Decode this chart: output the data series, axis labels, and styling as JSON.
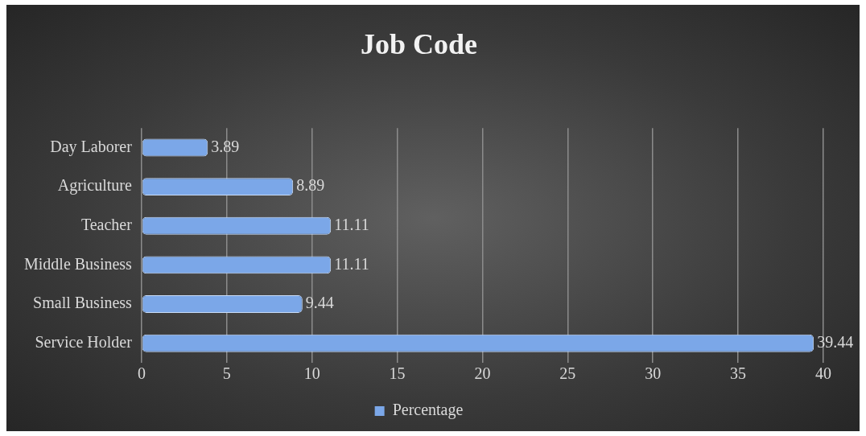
{
  "chart_data": {
    "type": "bar",
    "orientation": "horizontal",
    "title": "Job Code",
    "categories": [
      "Day Laborer",
      "Agriculture",
      "Teacher",
      "Middle Business",
      "Small Business",
      "Service Holder"
    ],
    "series": [
      {
        "name": "Percentage",
        "color": "#7ba7e8",
        "values": [
          3.89,
          8.89,
          11.11,
          11.11,
          9.44,
          39.44
        ]
      }
    ],
    "xlim": [
      0,
      40
    ],
    "xticks": [
      0,
      5,
      10,
      15,
      20,
      25,
      30,
      35,
      40
    ],
    "grid": "x",
    "legend": "bottom",
    "data_labels": true
  }
}
